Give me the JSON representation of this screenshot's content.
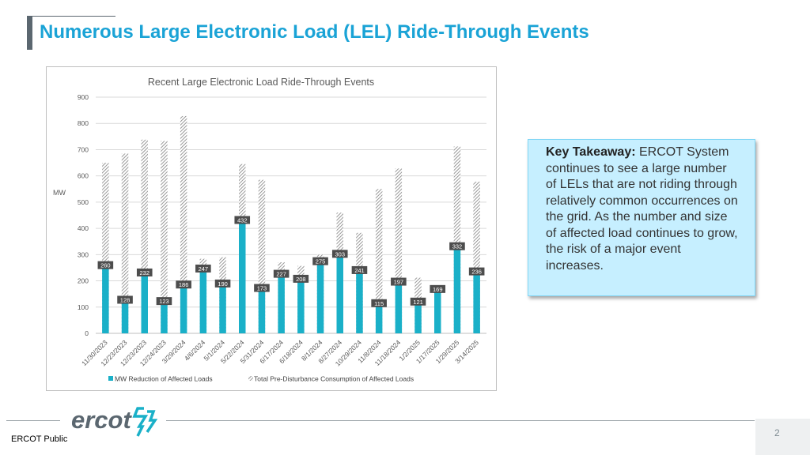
{
  "slide": {
    "title": "Numerous Large Electronic Load (LEL) Ride-Through Events",
    "takeaway_heading": "Key Takeaway:",
    "takeaway_body": " ERCOT System continues to see a large number of LELs that are not riding through relatively common occurrences on the grid.  As the number and size of affected load continues to grow, the risk of a major event increases.",
    "footer_label": "ERCOT Public",
    "logo_text": "ercot",
    "page_number": "2"
  },
  "colors": {
    "title": "#1aa3d6",
    "bar": "#1ab0c8",
    "hatch": "#7f7f7f",
    "takeaway_bg": "#c6efff"
  },
  "chart_data": {
    "type": "bar",
    "title": "Recent Large Electronic Load Ride-Through Events",
    "ylabel": "MW",
    "ylim": [
      0,
      900
    ],
    "yticks": [
      0,
      100,
      200,
      300,
      400,
      500,
      600,
      700,
      800,
      900
    ],
    "categories": [
      "11/30/2023",
      "12/23/2023",
      "12/23/2023",
      "12/24/2023",
      "3/29/2024",
      "4/6/2024",
      "5/1/2024",
      "5/22/2024",
      "5/31/2024",
      "6/17/2024",
      "6/18/2024",
      "8/1/2024",
      "8/27/2024",
      "10/29/2024",
      "11/8/2024",
      "11/18/2024",
      "1/2/2025",
      "1/17/2025",
      "1/29/2025",
      "3/14/2025"
    ],
    "series": [
      {
        "name": "MW Reduction of Affected Loads",
        "values": [
          260,
          128,
          232,
          123,
          186,
          247,
          190,
          432,
          173,
          227,
          208,
          275,
          303,
          241,
          115,
          197,
          121,
          169,
          332,
          236
        ]
      },
      {
        "name": "Total Pre-Disturbance Consumption of Affected Loads",
        "values": [
          650,
          685,
          738,
          733,
          828,
          284,
          290,
          645,
          585,
          271,
          257,
          300,
          460,
          383,
          550,
          628,
          212,
          183,
          712,
          578
        ]
      }
    ],
    "data_labels": [
      "260",
      "128",
      "232",
      "123",
      "186",
      "247",
      "190",
      "432",
      "173",
      "227",
      "208",
      "275",
      "303",
      "241",
      "115",
      "197",
      "121",
      "169",
      "332",
      "236"
    ],
    "legend_position": "bottom",
    "grid": true
  }
}
